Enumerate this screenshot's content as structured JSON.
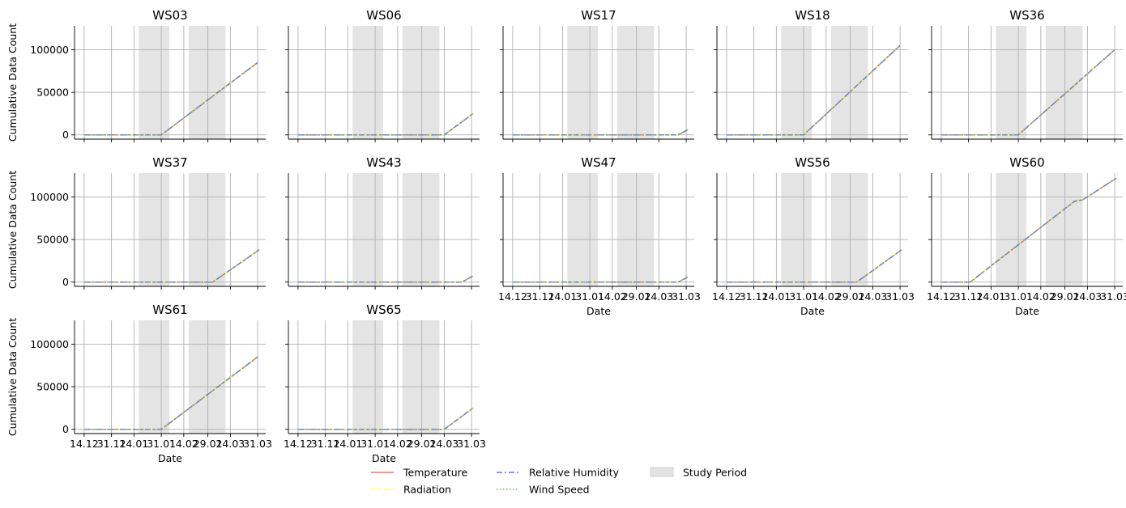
{
  "chart_data": {
    "type": "line",
    "layout": "small-multiples grid (3 rows x 5 columns, shared axes)",
    "ylabel": "Cumulative Data Count",
    "xlabel": "Date",
    "ylim": [
      -5000,
      128000
    ],
    "yticks": [
      0,
      50000,
      100000
    ],
    "ytick_labels": [
      "0",
      "50000",
      "100000"
    ],
    "xlim": [
      "2023-12-08",
      "2024-04-05"
    ],
    "xticks": [
      "2023-12-14",
      "2023-12-31",
      "2024-01-14",
      "2024-01-31",
      "2024-02-14",
      "2024-02-29",
      "2024-03-14",
      "2024-03-31"
    ],
    "xtick_labels": [
      "14.12",
      "31.12",
      "14.01",
      "31.01",
      "14.02",
      "29.02",
      "14.03",
      "31.03"
    ],
    "grid": true,
    "shaded_periods": [
      {
        "start": "2024-01-17",
        "end": "2024-02-05"
      },
      {
        "start": "2024-02-17",
        "end": "2024-03-11"
      }
    ],
    "legend": {
      "placement": "bottom-center",
      "entries": [
        {
          "label": "Temperature",
          "color": "#f07070",
          "style": "solid"
        },
        {
          "label": "Radiation",
          "color": "#ffff55",
          "style": "dashed"
        },
        {
          "label": "Relative Humidity",
          "color": "#6a6af0",
          "style": "dashdot"
        },
        {
          "label": "Wind Speed",
          "color": "#5cb85c",
          "style": "dotted"
        },
        {
          "label": "Study Period",
          "color": "#e3e3e3",
          "style": "patch"
        }
      ]
    },
    "panels": [
      {
        "title": "WS03",
        "points": [
          [
            "2023-12-14",
            0
          ],
          [
            "2024-01-31",
            0
          ],
          [
            "2024-03-31",
            85000
          ]
        ]
      },
      {
        "title": "WS06",
        "points": [
          [
            "2023-12-14",
            0
          ],
          [
            "2024-03-14",
            0
          ],
          [
            "2024-04-01",
            25000
          ]
        ]
      },
      {
        "title": "WS17",
        "points": [
          [
            "2023-12-14",
            0
          ],
          [
            "2024-03-26",
            0
          ],
          [
            "2024-04-01",
            6000
          ]
        ]
      },
      {
        "title": "WS18",
        "points": [
          [
            "2023-12-14",
            0
          ],
          [
            "2024-01-31",
            0
          ],
          [
            "2024-03-31",
            105000
          ]
        ]
      },
      {
        "title": "WS36",
        "points": [
          [
            "2023-12-14",
            0
          ],
          [
            "2024-01-31",
            0
          ],
          [
            "2024-03-31",
            100000
          ]
        ]
      },
      {
        "title": "WS37",
        "points": [
          [
            "2023-12-14",
            0
          ],
          [
            "2024-03-03",
            0
          ],
          [
            "2024-04-01",
            38000
          ]
        ]
      },
      {
        "title": "WS43",
        "points": [
          [
            "2023-12-14",
            0
          ],
          [
            "2024-03-25",
            0
          ],
          [
            "2024-04-01",
            7500
          ]
        ]
      },
      {
        "title": "WS47",
        "points": [
          [
            "2023-12-14",
            0
          ],
          [
            "2024-03-26",
            0
          ],
          [
            "2024-04-01",
            6000
          ]
        ]
      },
      {
        "title": "WS56",
        "points": [
          [
            "2023-12-14",
            0
          ],
          [
            "2024-03-04",
            0
          ],
          [
            "2024-04-01",
            38000
          ]
        ]
      },
      {
        "title": "WS60",
        "points": [
          [
            "2023-12-14",
            0
          ],
          [
            "2024-01-01",
            0
          ],
          [
            "2024-03-06",
            95000
          ],
          [
            "2024-03-11",
            96500
          ],
          [
            "2024-04-01",
            122000
          ]
        ]
      },
      {
        "title": "WS61",
        "points": [
          [
            "2023-12-14",
            0
          ],
          [
            "2024-01-31",
            0
          ],
          [
            "2024-03-31",
            85000
          ]
        ]
      },
      {
        "title": "WS65",
        "points": [
          [
            "2023-12-14",
            0
          ],
          [
            "2024-03-14",
            0
          ],
          [
            "2024-04-01",
            25000
          ]
        ]
      }
    ]
  }
}
